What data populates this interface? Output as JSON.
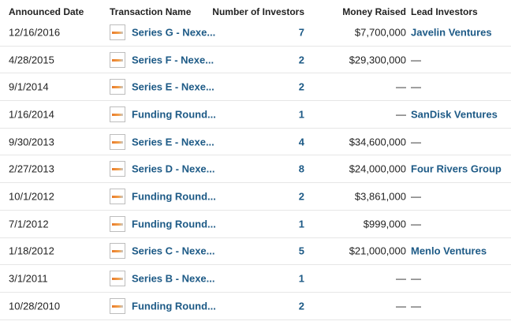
{
  "table": {
    "headers": {
      "announced_date": "Announced Date",
      "transaction_name": "Transaction Name",
      "number_of_investors": "Number of Investors",
      "money_raised": "Money Raised",
      "lead_investors": "Lead Investors"
    },
    "rows": [
      {
        "date": "12/16/2016",
        "name": "Series G - Nexe...",
        "investors": "7",
        "money": "$7,700,000",
        "lead": "Javelin Ventures"
      },
      {
        "date": "4/28/2015",
        "name": "Series F - Nexe...",
        "investors": "2",
        "money": "$29,300,000",
        "lead": "—"
      },
      {
        "date": "9/1/2014",
        "name": "Series E - Nexe...",
        "investors": "2",
        "money": "—",
        "lead": "—"
      },
      {
        "date": "1/16/2014",
        "name": "Funding Round...",
        "investors": "1",
        "money": "—",
        "lead": "SanDisk Ventures"
      },
      {
        "date": "9/30/2013",
        "name": "Series E - Nexe...",
        "investors": "4",
        "money": "$34,600,000",
        "lead": "—"
      },
      {
        "date": "2/27/2013",
        "name": "Series D - Nexe...",
        "investors": "8",
        "money": "$24,000,000",
        "lead": "Four Rivers Group"
      },
      {
        "date": "10/1/2012",
        "name": "Funding Round...",
        "investors": "2",
        "money": "$3,861,000",
        "lead": "—"
      },
      {
        "date": "7/1/2012",
        "name": "Funding Round...",
        "investors": "1",
        "money": "$999,000",
        "lead": "—"
      },
      {
        "date": "1/18/2012",
        "name": "Series C - Nexe...",
        "investors": "5",
        "money": "$21,000,000",
        "lead": "Menlo Ventures"
      },
      {
        "date": "3/1/2011",
        "name": "Series B - Nexe...",
        "investors": "1",
        "money": "—",
        "lead": "—"
      },
      {
        "date": "10/28/2010",
        "name": "Funding Round...",
        "investors": "2",
        "money": "—",
        "lead": "—"
      }
    ]
  }
}
